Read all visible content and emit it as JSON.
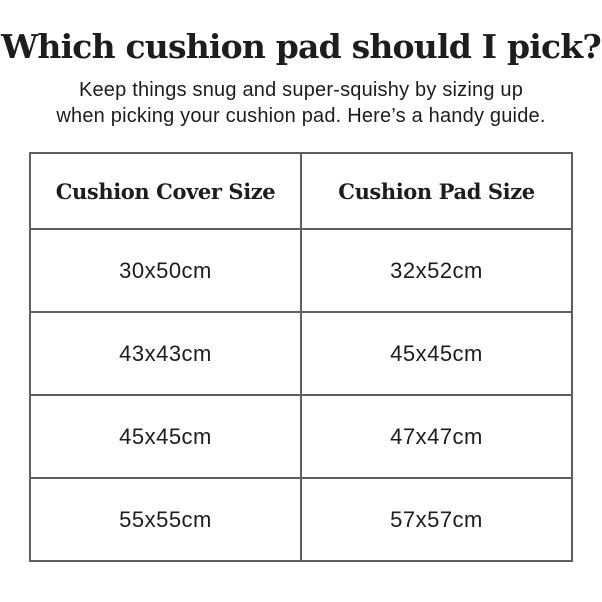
{
  "page": {
    "title": "Which cushion pad should I pick?",
    "subtitle_line1": "Keep things snug and super-squishy by sizing up",
    "subtitle_line2": "when picking your cushion pad. Here’s a handy guide."
  },
  "table": {
    "headers": {
      "cover": "Cushion Cover Size",
      "pad": "Cushion Pad Size"
    },
    "rows": [
      {
        "cover": "30x50cm",
        "pad": "32x52cm"
      },
      {
        "cover": "43x43cm",
        "pad": "45x45cm"
      },
      {
        "cover": "45x45cm",
        "pad": "47x47cm"
      },
      {
        "cover": "55x55cm",
        "pad": "57x57cm"
      }
    ]
  },
  "colors": {
    "background": "#ffffff",
    "text": "#1d1d1d",
    "table_border": "#5f5f5f"
  }
}
